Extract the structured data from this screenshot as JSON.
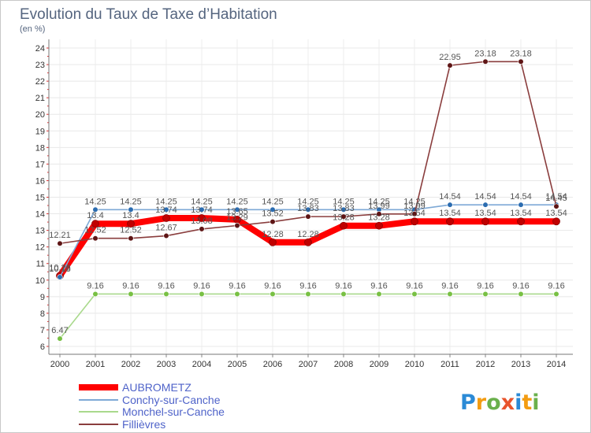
{
  "chart_data": {
    "type": "line",
    "title": "Evolution du Taux de Taxe d’Habitation",
    "ylabel": "(en %)",
    "xlabel": "",
    "x": [
      2000,
      2001,
      2002,
      2003,
      2004,
      2005,
      2006,
      2007,
      2008,
      2009,
      2010,
      2011,
      2012,
      2013,
      2014
    ],
    "ylim": [
      6,
      24
    ],
    "yticks": [
      6,
      7,
      8,
      9,
      10,
      11,
      12,
      13,
      14,
      15,
      16,
      17,
      18,
      19,
      20,
      21,
      22,
      23,
      24
    ],
    "grid": true,
    "legend_position": "bottom-left",
    "series": [
      {
        "name": "AUBROMETZ",
        "color": "#ff0000",
        "marker_color": "#c00000",
        "values": [
          10.26,
          13.4,
          13.4,
          13.74,
          13.74,
          13.65,
          12.28,
          12.28,
          13.28,
          13.28,
          13.54,
          13.54,
          13.54,
          13.54,
          13.54
        ]
      },
      {
        "name": "Conchy-sur-Canche",
        "color": "#7ea9d6",
        "marker_color": "#2b6cb0",
        "values": [
          10.18,
          14.25,
          14.25,
          14.25,
          14.25,
          14.25,
          14.25,
          14.25,
          14.25,
          14.25,
          14.25,
          14.54,
          14.54,
          14.54,
          14.54
        ]
      },
      {
        "name": "Monchel-sur-Canche",
        "color": "#a9d98c",
        "marker_color": "#78c043",
        "values": [
          6.47,
          9.16,
          9.16,
          9.16,
          9.16,
          9.16,
          9.16,
          9.16,
          9.16,
          9.16,
          9.16,
          9.16,
          9.16,
          9.16,
          9.16
        ]
      },
      {
        "name": "Fillièvres",
        "color": "#8a3d3d",
        "marker_color": "#5e1515",
        "values": [
          12.21,
          12.52,
          12.52,
          12.67,
          13.08,
          13.29,
          13.52,
          13.83,
          13.83,
          13.99,
          13.99,
          22.95,
          23.18,
          23.18,
          14.45
        ]
      }
    ]
  },
  "logo": {
    "text": "Proxiti",
    "letter_colors": [
      "#2b8ad6",
      "#f39c12",
      "#6ab04c",
      "#e8542c",
      "#2b8ad6",
      "#f39c12",
      "#6ab04c"
    ]
  }
}
